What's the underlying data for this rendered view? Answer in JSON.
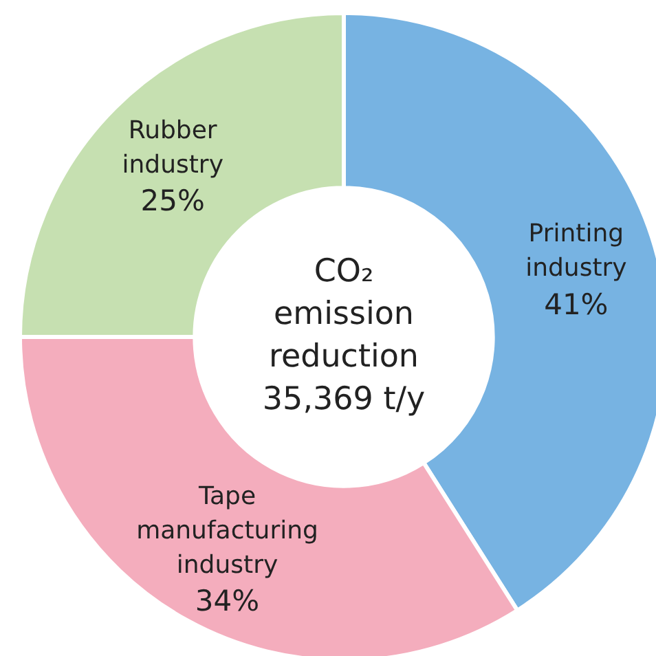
{
  "chart_data": {
    "type": "donut",
    "title": "CO₂ emission reduction 35,369 t/y",
    "categories": [
      "Printing industry",
      "Tape manufacturing industry",
      "Rubber industry"
    ],
    "values": [
      41,
      34,
      25
    ],
    "colors": [
      "#77b3e2",
      "#f4adbd",
      "#c6e0b1"
    ],
    "value_labels": [
      "41%",
      "34%",
      "25%"
    ]
  }
}
